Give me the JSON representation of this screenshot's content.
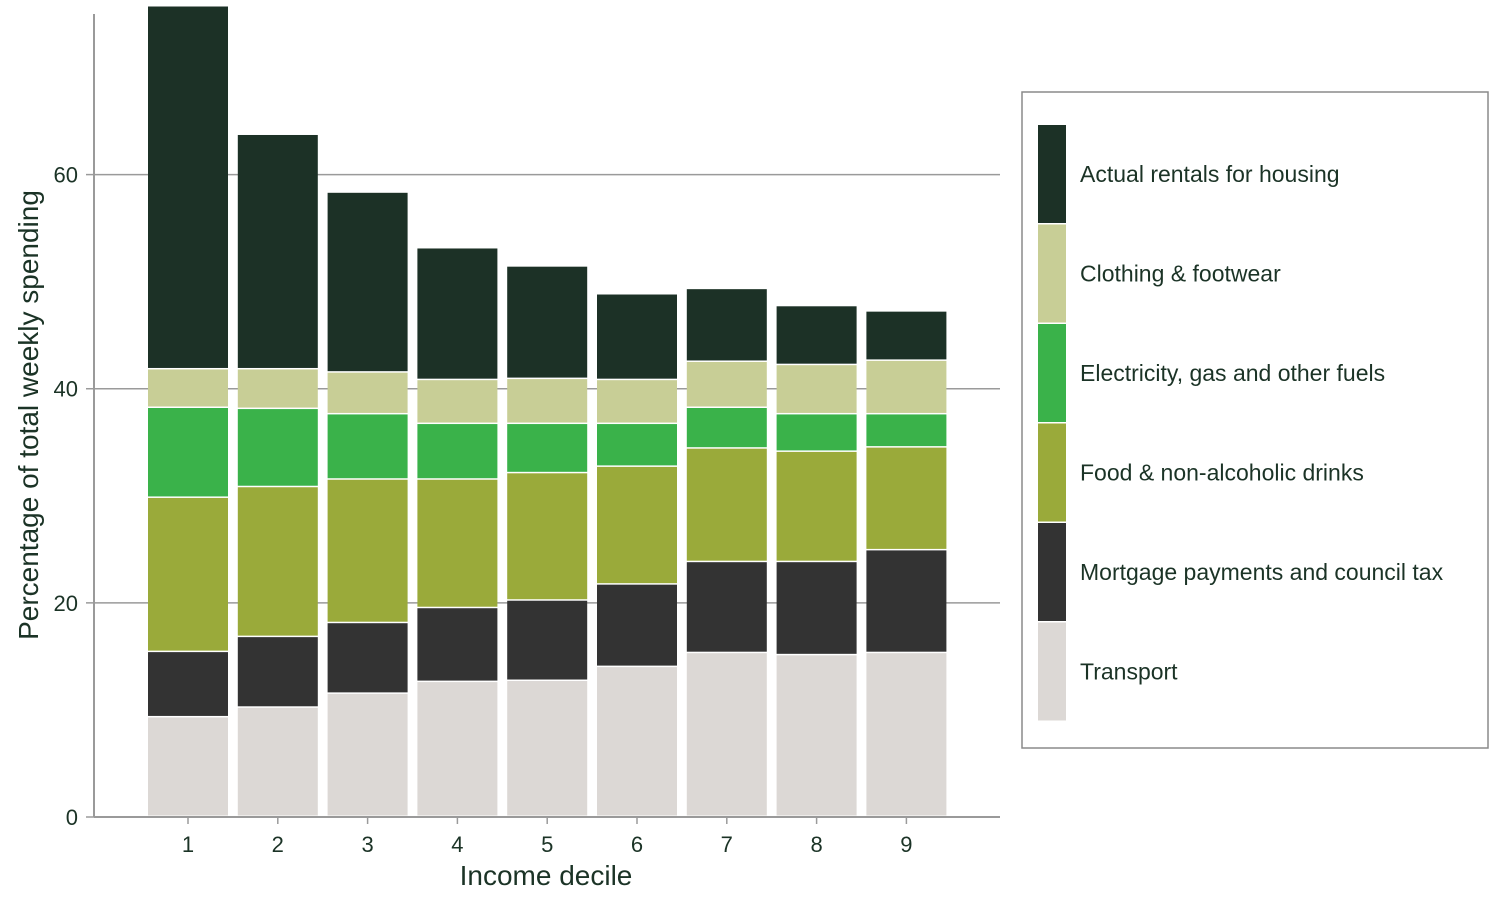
{
  "chart_data": {
    "type": "bar",
    "stacked": true,
    "title": "",
    "xlabel": "Income decile",
    "ylabel": "Percentage of total weekly spending",
    "categories": [
      "1",
      "2",
      "3",
      "4",
      "5",
      "6",
      "7",
      "8",
      "9"
    ],
    "ylim": [
      0,
      75
    ],
    "yticks": [
      0,
      20,
      40,
      60
    ],
    "grid": "horizontal",
    "legend_position": "right",
    "series": [
      {
        "name": "Transport",
        "color": "#dcd8d5",
        "values": [
          9.3,
          10.2,
          11.5,
          12.6,
          12.7,
          14.0,
          15.3,
          15.1,
          15.3
        ]
      },
      {
        "name": "Mortgage payments and council tax",
        "color": "#333333",
        "values": [
          6.1,
          6.6,
          6.6,
          6.9,
          7.5,
          7.7,
          8.5,
          8.7,
          9.6
        ]
      },
      {
        "name": "Food & non-alcoholic drinks",
        "color": "#9aaa3a",
        "values": [
          14.4,
          14.0,
          13.4,
          12.0,
          11.9,
          11.0,
          10.6,
          10.3,
          9.6
        ]
      },
      {
        "name": "Electricity, gas and other fuels",
        "color": "#3ab24a",
        "values": [
          8.4,
          7.3,
          6.1,
          5.2,
          4.6,
          4.0,
          3.8,
          3.5,
          3.1
        ]
      },
      {
        "name": "Clothing & footwear",
        "color": "#c8ce96",
        "values": [
          3.6,
          3.7,
          3.9,
          4.1,
          4.2,
          4.1,
          4.3,
          4.6,
          5.0
        ]
      },
      {
        "name": "Actual rentals for housing",
        "color": "#1c3126",
        "values": [
          33.9,
          21.9,
          16.8,
          12.3,
          10.5,
          8.0,
          6.8,
          5.5,
          4.6
        ]
      }
    ]
  }
}
